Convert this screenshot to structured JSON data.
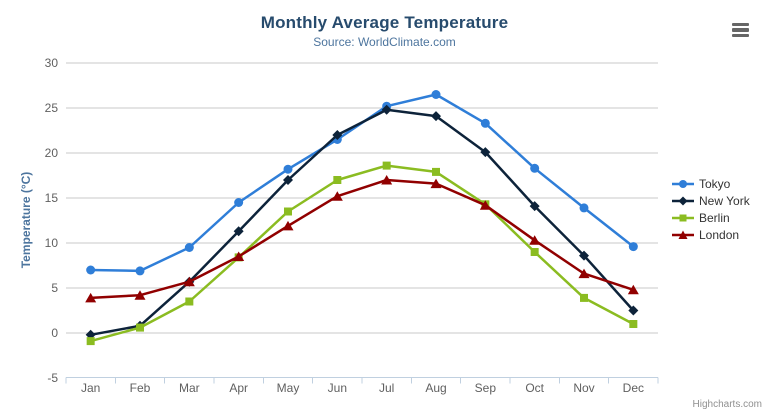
{
  "header": {
    "title": "Monthly Average Temperature",
    "subtitle": "Source: WorldClimate.com"
  },
  "credits": "Highcharts.com",
  "menu_icon": "hamburger-menu-icon",
  "theme": {
    "title_color": "#274b6d",
    "subtitle_color": "#4d759e",
    "axis_label_color": "#606060",
    "axis_title_color": "#4d759e",
    "grid_line_color": "#c8c8c8",
    "axis_line_color": "#c0d0e0",
    "legend_text_color": "#333333",
    "credits_color": "#909090",
    "menu_icon_color": "#666666"
  },
  "chart_data": {
    "type": "line",
    "title": "Monthly Average Temperature",
    "subtitle": "Source: WorldClimate.com",
    "categories": [
      "Jan",
      "Feb",
      "Mar",
      "Apr",
      "May",
      "Jun",
      "Jul",
      "Aug",
      "Sep",
      "Oct",
      "Nov",
      "Dec"
    ],
    "xlabel": "",
    "ylabel": "Temperature (°C)",
    "ylim": [
      -5,
      30
    ],
    "ytick_step": 5,
    "grid": true,
    "legend_position": "right",
    "series": [
      {
        "name": "Tokyo",
        "color": "#2f7ed8",
        "marker": "circle",
        "values": [
          7.0,
          6.9,
          9.5,
          14.5,
          18.2,
          21.5,
          25.2,
          26.5,
          23.3,
          18.3,
          13.9,
          9.6
        ]
      },
      {
        "name": "New York",
        "color": "#0d233a",
        "marker": "diamond",
        "values": [
          -0.2,
          0.8,
          5.7,
          11.3,
          17.0,
          22.0,
          24.8,
          24.1,
          20.1,
          14.1,
          8.6,
          2.5
        ]
      },
      {
        "name": "Berlin",
        "color": "#8bbc21",
        "marker": "square",
        "values": [
          -0.9,
          0.6,
          3.5,
          8.4,
          13.5,
          17.0,
          18.6,
          17.9,
          14.3,
          9.0,
          3.9,
          1.0
        ]
      },
      {
        "name": "London",
        "color": "#910000",
        "marker": "triangle",
        "values": [
          3.9,
          4.2,
          5.7,
          8.5,
          11.9,
          15.2,
          17.0,
          16.6,
          14.2,
          10.3,
          6.6,
          4.8
        ]
      }
    ]
  }
}
